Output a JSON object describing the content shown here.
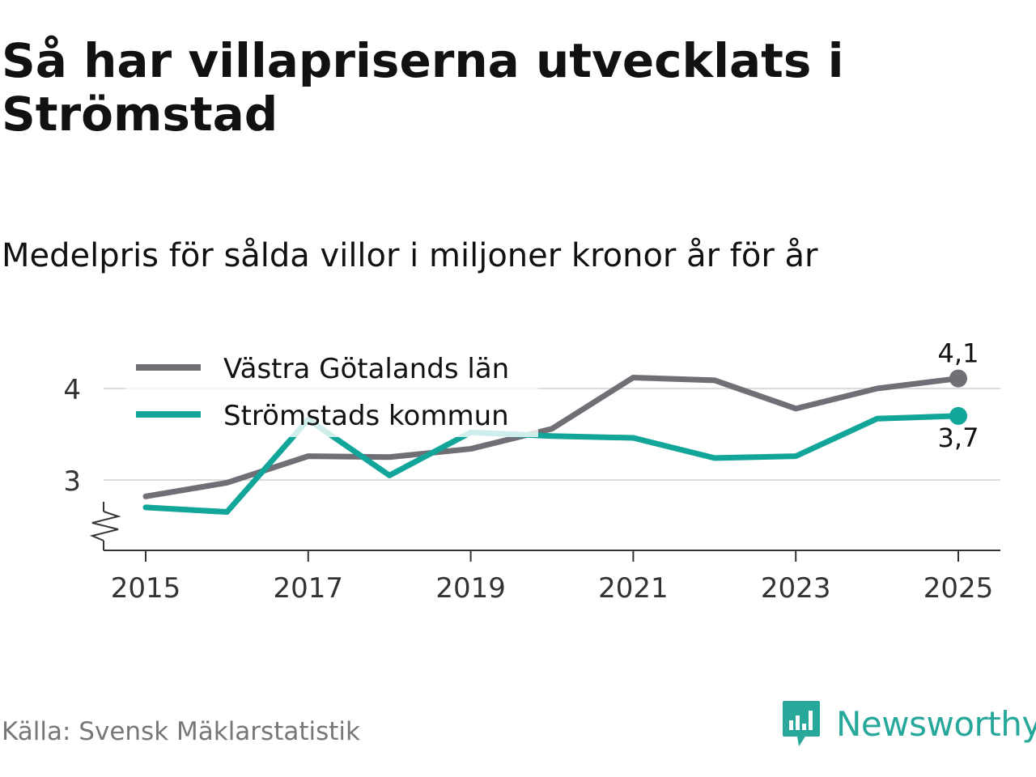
{
  "title": "Så har villapriserna utvecklats i Strömstad",
  "subtitle": "Medelpris för sålda villor i miljoner kronor år för år",
  "source": "Källa: Svensk Mäklarstatistik",
  "brand": {
    "name": "Newsworthy",
    "icon": "newsworthy-logo-icon",
    "color": "#27a89a"
  },
  "chart_data": {
    "type": "line",
    "x": [
      2015,
      2016,
      2017,
      2018,
      2019,
      2020,
      2021,
      2022,
      2023,
      2024,
      2025
    ],
    "x_ticks": [
      "2015",
      "2017",
      "2019",
      "2021",
      "2023",
      "2025"
    ],
    "y_ticks": [
      "3",
      "4"
    ],
    "ylim": [
      2.25,
      4.5
    ],
    "y_axis_break": true,
    "grid": true,
    "legend_position": "top-left",
    "series": [
      {
        "name": "Västra Götalands län",
        "color": "#706f76",
        "values": [
          2.82,
          2.97,
          3.26,
          3.25,
          3.34,
          3.56,
          4.12,
          4.09,
          3.78,
          4.0,
          4.11
        ],
        "end_label": "4,1"
      },
      {
        "name": "Strömstads kommun",
        "color": "#12a59a",
        "values": [
          2.7,
          2.65,
          3.66,
          3.05,
          3.52,
          3.48,
          3.46,
          3.24,
          3.26,
          3.67,
          3.7
        ],
        "end_label": "3,7"
      }
    ]
  }
}
